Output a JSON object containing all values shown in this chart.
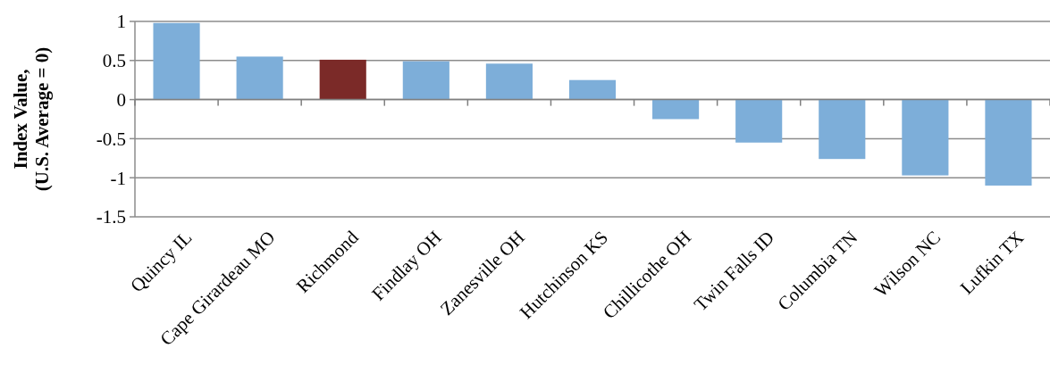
{
  "chart_data": {
    "type": "bar",
    "ylabel": "Index Value,\n(U.S. Average = 0)",
    "categories": [
      "Quincy IL",
      "Cape Girardeau MO",
      "Richmond",
      "Findlay OH",
      "Zanesville OH",
      "Hutchinson KS",
      "Chillicothe OH",
      "Twin Falls ID",
      "Columbia TN",
      "Wilson NC",
      "Lufkin TX"
    ],
    "values": [
      0.98,
      0.55,
      0.51,
      0.49,
      0.46,
      0.25,
      -0.25,
      -0.55,
      -0.76,
      -0.97,
      -1.1
    ],
    "colors": [
      "#7daed9",
      "#7daed9",
      "#7b2a28",
      "#7daed9",
      "#7daed9",
      "#7daed9",
      "#7daed9",
      "#7daed9",
      "#7daed9",
      "#7daed9",
      "#7daed9"
    ],
    "ylim": [
      -1.5,
      1
    ],
    "yticks": [
      -1.5,
      -1,
      -0.5,
      0,
      0.5,
      1
    ],
    "grid": "y"
  }
}
